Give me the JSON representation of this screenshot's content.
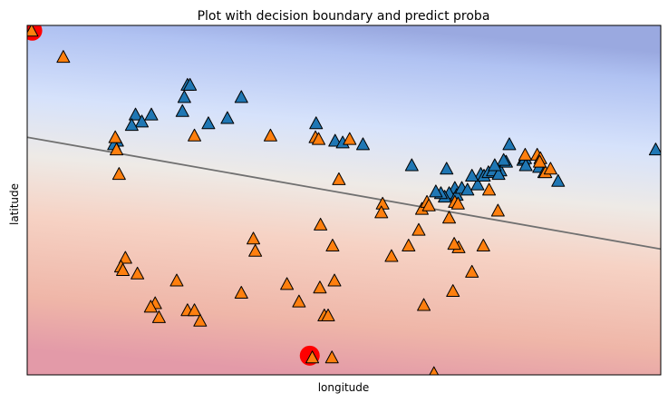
{
  "chart_data": {
    "type": "scatter",
    "title": "Plot with decision boundary and predict proba",
    "xlabel": "longitude",
    "ylabel": "latitude",
    "xlim": [
      0,
      100
    ],
    "ylim": [
      0,
      100
    ],
    "ticks_visible": false,
    "grid": false,
    "legend": "none",
    "marker": "triangle-up",
    "colors": {
      "class_a": "#1f77b4",
      "class_b": "#ff7f0e",
      "highlight": "#ff0000",
      "boundary": "#707070",
      "prob_high_a": "#9aa9e0",
      "prob_mid": "#eeeae6",
      "prob_high_b": "#e39aa8"
    },
    "decision_boundary": {
      "x": [
        0,
        100
      ],
      "y": [
        68,
        36
      ]
    },
    "series": [
      {
        "class": "a",
        "points": [
          [
            25.3,
            83.0
          ],
          [
            25.7,
            83.0
          ],
          [
            24.8,
            79.5
          ],
          [
            24.5,
            75.5
          ],
          [
            33.8,
            79.5
          ],
          [
            31.6,
            73.5
          ],
          [
            28.6,
            72.0
          ],
          [
            19.6,
            74.5
          ],
          [
            17.1,
            74.5
          ],
          [
            18.1,
            72.5
          ],
          [
            16.5,
            71.5
          ],
          [
            14.2,
            67.0
          ],
          [
            13.7,
            66.0
          ],
          [
            45.6,
            72.0
          ],
          [
            48.6,
            67.0
          ],
          [
            49.8,
            66.5
          ],
          [
            53.0,
            66.0
          ],
          [
            60.7,
            60.0
          ],
          [
            66.2,
            59.0
          ],
          [
            67.5,
            53.5
          ],
          [
            66.6,
            52.0
          ],
          [
            65.9,
            51.0
          ],
          [
            65.3,
            52.0
          ],
          [
            64.5,
            52.5
          ],
          [
            67.8,
            51.5
          ],
          [
            68.6,
            53.5
          ],
          [
            69.5,
            53.0
          ],
          [
            71.1,
            54.5
          ],
          [
            71.6,
            57.5
          ],
          [
            72.1,
            57.0
          ],
          [
            72.8,
            58.0
          ],
          [
            73.5,
            58.5
          ],
          [
            74.7,
            58.5
          ],
          [
            75.6,
            61.0
          ],
          [
            76.1,
            66.0
          ],
          [
            74.4,
            57.5
          ],
          [
            78.3,
            61.5
          ],
          [
            78.6,
            62.0
          ],
          [
            78.7,
            60.0
          ],
          [
            80.8,
            59.5
          ],
          [
            81.6,
            58.0
          ],
          [
            83.8,
            55.5
          ],
          [
            99.2,
            64.5
          ],
          [
            75.2,
            61.5
          ],
          [
            73.8,
            60.0
          ],
          [
            70.2,
            57.0
          ]
        ]
      },
      {
        "class": "b",
        "points": [
          [
            0.7,
            98.5
          ],
          [
            5.7,
            91.0
          ],
          [
            13.9,
            68.0
          ],
          [
            14.1,
            64.5
          ],
          [
            14.5,
            57.5
          ],
          [
            26.4,
            68.5
          ],
          [
            38.4,
            68.5
          ],
          [
            45.5,
            68.0
          ],
          [
            46.0,
            67.5
          ],
          [
            50.9,
            67.5
          ],
          [
            49.2,
            56.0
          ],
          [
            56.1,
            49.0
          ],
          [
            55.9,
            46.5
          ],
          [
            62.3,
            47.5
          ],
          [
            61.8,
            41.5
          ],
          [
            60.2,
            37.0
          ],
          [
            57.5,
            34.0
          ],
          [
            46.3,
            43.0
          ],
          [
            48.2,
            37.0
          ],
          [
            35.7,
            39.0
          ],
          [
            36.0,
            35.5
          ],
          [
            15.5,
            33.5
          ],
          [
            14.8,
            31.0
          ],
          [
            15.1,
            30.0
          ],
          [
            17.4,
            29.0
          ],
          [
            23.6,
            27.0
          ],
          [
            46.2,
            25.0
          ],
          [
            48.5,
            27.0
          ],
          [
            33.8,
            23.5
          ],
          [
            20.2,
            20.5
          ],
          [
            19.5,
            19.5
          ],
          [
            20.8,
            16.5
          ],
          [
            25.3,
            18.5
          ],
          [
            26.4,
            18.5
          ],
          [
            27.3,
            15.5
          ],
          [
            46.9,
            17.0
          ],
          [
            47.5,
            17.0
          ],
          [
            41.0,
            26.0
          ],
          [
            42.9,
            21.0
          ],
          [
            67.2,
            24.0
          ],
          [
            62.6,
            20.0
          ],
          [
            66.6,
            45.0
          ],
          [
            68.1,
            36.5
          ],
          [
            67.4,
            37.5
          ],
          [
            70.2,
            29.5
          ],
          [
            72.0,
            37.0
          ],
          [
            74.3,
            47.0
          ],
          [
            72.9,
            53.0
          ],
          [
            78.6,
            63.0
          ],
          [
            80.5,
            63.0
          ],
          [
            81.0,
            62.0
          ],
          [
            81.8,
            58.0
          ],
          [
            82.6,
            59.0
          ],
          [
            80.9,
            61.0
          ],
          [
            63.1,
            49.5
          ],
          [
            63.4,
            48.5
          ],
          [
            67.5,
            49.5
          ],
          [
            68.0,
            49.0
          ],
          [
            45.0,
            5.0
          ],
          [
            48.1,
            5.0
          ],
          [
            64.2,
            0.5
          ]
        ]
      },
      {
        "class": "highlight",
        "points": [
          [
            0.8,
            98.5
          ],
          [
            44.6,
            5.5
          ]
        ]
      }
    ]
  }
}
